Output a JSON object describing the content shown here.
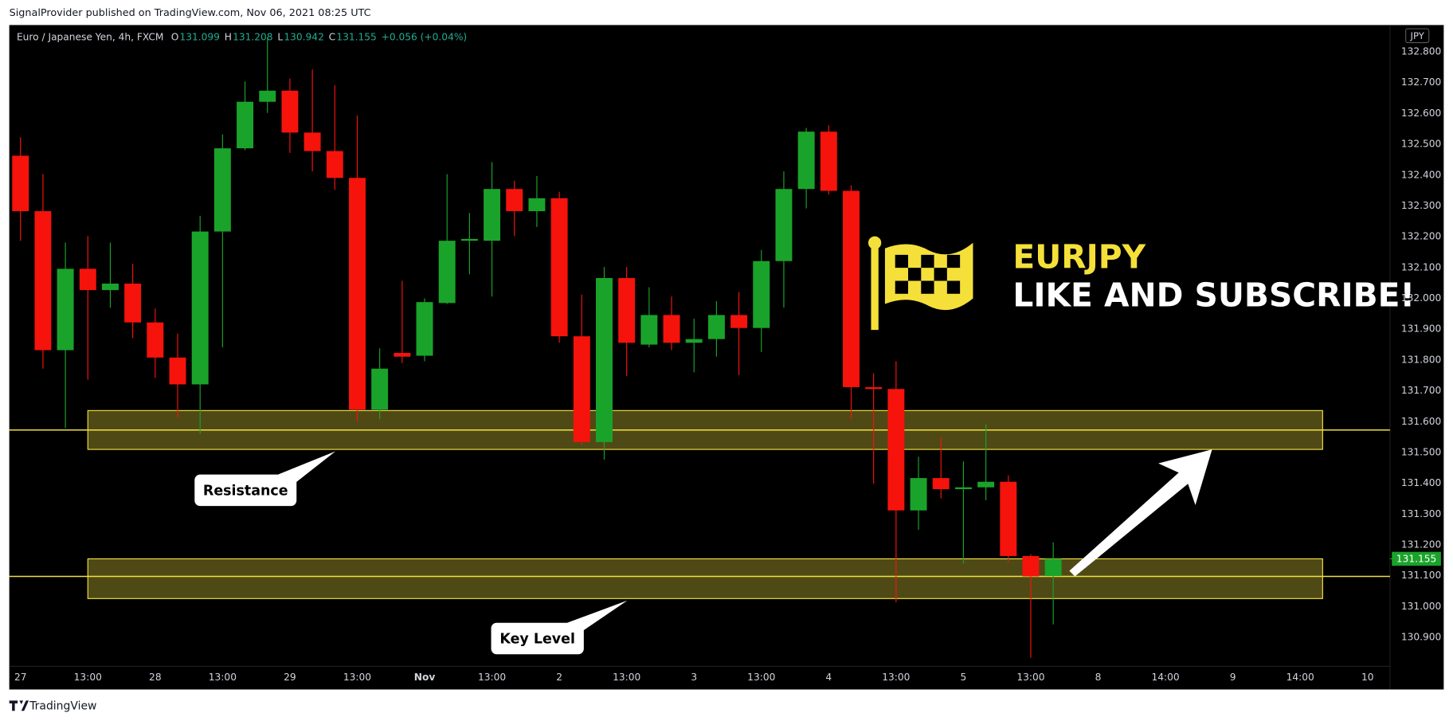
{
  "header": {
    "published": "SignalProvider published on TradingView.com, Nov 06, 2021 08:25 UTC"
  },
  "footer": {
    "brand": "TradingView"
  },
  "chart_data": {
    "type": "candlestick",
    "symbol": "Euro / Japanese Yen, 4h, FXCM",
    "ohlc": [
      {
        "key": "O",
        "value": 131.099,
        "label": "131.099"
      },
      {
        "key": "H",
        "value": 131.208,
        "label": "131.208"
      },
      {
        "key": "L",
        "value": 130.942,
        "label": "130.942"
      },
      {
        "key": "C",
        "value": 131.155,
        "label": "131.155"
      }
    ],
    "change": "+0.056 (+0.04%)",
    "currency": "JPY",
    "up_color": "#1aa32a",
    "down_color": "#f5130c",
    "candles": {
      "open": [
        132.463,
        132.283,
        131.832,
        132.096,
        132.027,
        132.048,
        131.922,
        131.808,
        131.721,
        132.217,
        132.487,
        132.638,
        132.674,
        132.538,
        132.478,
        132.391,
        131.639,
        131.823,
        131.814,
        131.985,
        132.187,
        132.187,
        132.355,
        132.283,
        132.325,
        131.877,
        131.534,
        132.066,
        131.85,
        131.946,
        131.856,
        131.868,
        131.946,
        131.904,
        132.121,
        132.355,
        132.541,
        132.349,
        131.712,
        131.706,
        131.312,
        131.417,
        131.381,
        131.387,
        131.405,
        131.164,
        131.099
      ],
      "high": [
        132.523,
        132.403,
        132.181,
        132.202,
        132.181,
        132.112,
        131.967,
        131.886,
        132.268,
        132.532,
        132.704,
        132.848,
        132.713,
        132.743,
        132.692,
        132.593,
        131.838,
        132.057,
        132.0,
        132.403,
        132.277,
        132.442,
        132.382,
        132.397,
        132.346,
        132.012,
        132.102,
        132.102,
        132.036,
        132.006,
        131.934,
        131.991,
        132.021,
        132.157,
        132.412,
        132.553,
        132.562,
        132.367,
        131.757,
        131.796,
        131.486,
        131.549,
        131.471,
        131.591,
        131.426,
        131.17,
        131.208
      ],
      "low": [
        132.187,
        131.772,
        131.579,
        131.736,
        131.97,
        131.871,
        131.742,
        131.615,
        131.561,
        131.841,
        132.481,
        132.602,
        132.472,
        132.412,
        132.352,
        131.6,
        131.609,
        131.79,
        131.796,
        131.982,
        132.078,
        132.006,
        132.202,
        132.232,
        131.856,
        131.525,
        131.477,
        131.748,
        131.841,
        131.832,
        131.76,
        131.811,
        131.751,
        131.826,
        131.97,
        132.292,
        132.337,
        131.609,
        131.399,
        131.014,
        131.249,
        131.351,
        131.14,
        131.345,
        131.143,
        130.834,
        130.942
      ],
      "close": [
        132.283,
        131.832,
        132.096,
        132.027,
        132.048,
        131.922,
        131.808,
        131.721,
        132.217,
        132.487,
        132.638,
        132.674,
        132.538,
        132.478,
        132.391,
        131.639,
        131.772,
        131.811,
        131.988,
        132.187,
        132.193,
        132.355,
        132.283,
        132.325,
        131.877,
        131.534,
        132.066,
        131.856,
        131.946,
        131.856,
        131.868,
        131.946,
        131.904,
        132.121,
        132.355,
        132.541,
        132.349,
        131.712,
        131.706,
        131.312,
        131.417,
        131.381,
        131.387,
        131.405,
        131.164,
        131.098,
        131.155
      ]
    },
    "xlim": [
      -0.5,
      61
    ],
    "xticks": [
      {
        "value": 0,
        "label": "27"
      },
      {
        "value": 3,
        "label": "13:00"
      },
      {
        "value": 6,
        "label": "28"
      },
      {
        "value": 9,
        "label": "13:00"
      },
      {
        "value": 12,
        "label": "29"
      },
      {
        "value": 15,
        "label": "13:00"
      },
      {
        "value": 18,
        "label": "Nov"
      },
      {
        "value": 21,
        "label": "13:00"
      },
      {
        "value": 24,
        "label": "2"
      },
      {
        "value": 27,
        "label": "13:00"
      },
      {
        "value": 30,
        "label": "3"
      },
      {
        "value": 33,
        "label": "13:00"
      },
      {
        "value": 36,
        "label": "4"
      },
      {
        "value": 39,
        "label": "13:00"
      },
      {
        "value": 42,
        "label": "5"
      },
      {
        "value": 45,
        "label": "13:00"
      },
      {
        "value": 48,
        "label": "8"
      },
      {
        "value": 51,
        "label": "14:00"
      },
      {
        "value": 54,
        "label": "9"
      },
      {
        "value": 57,
        "label": "14:00"
      },
      {
        "value": 60,
        "label": "10"
      }
    ],
    "ylim": [
      130.737,
      132.887
    ],
    "yticks": [
      {
        "value": 130.9,
        "label": "130.900"
      },
      {
        "value": 131.0,
        "label": "131.000"
      },
      {
        "value": 131.1,
        "label": "131.100"
      },
      {
        "value": 131.2,
        "label": "131.200"
      },
      {
        "value": 131.3,
        "label": "131.300"
      },
      {
        "value": 131.4,
        "label": "131.400"
      },
      {
        "value": 131.5,
        "label": "131.500"
      },
      {
        "value": 131.6,
        "label": "131.600"
      },
      {
        "value": 131.7,
        "label": "131.700"
      },
      {
        "value": 131.8,
        "label": "131.800"
      },
      {
        "value": 131.9,
        "label": "131.900"
      },
      {
        "value": 132.0,
        "label": "132.000"
      },
      {
        "value": 132.1,
        "label": "132.100"
      },
      {
        "value": 132.2,
        "label": "132.200"
      },
      {
        "value": 132.3,
        "label": "132.300"
      },
      {
        "value": 132.4,
        "label": "132.400"
      },
      {
        "value": 132.5,
        "label": "132.500"
      },
      {
        "value": 132.6,
        "label": "132.600"
      },
      {
        "value": 132.7,
        "label": "132.700"
      },
      {
        "value": 132.8,
        "label": "132.800"
      }
    ],
    "grid": false,
    "last_price": {
      "value": 131.155,
      "label": "131.155"
    },
    "zones": [
      {
        "label": "Resistance",
        "from": 131.51,
        "to": 131.636,
        "line": 131.573,
        "x_from": 3,
        "x_to": 58
      },
      {
        "label": "Key Level",
        "from": 131.026,
        "to": 131.155,
        "line": 131.098,
        "x_from": 3,
        "x_to": 58
      }
    ],
    "zone_color": "#f0e040",
    "annotations": {
      "symbol": "EURJPY",
      "cta": "LIKE AND SUBSCRIBE!"
    }
  }
}
